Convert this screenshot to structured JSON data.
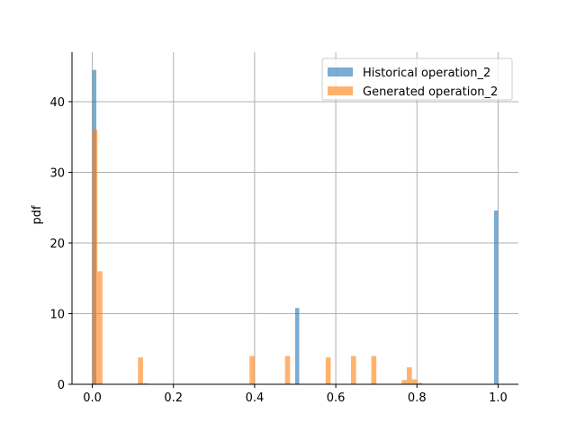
{
  "chart_data": {
    "type": "histogram",
    "title": "",
    "xlabel": "",
    "ylabel": "pdf",
    "xlim": [
      -0.05,
      1.05
    ],
    "ylim": [
      0,
      47
    ],
    "xticks": [
      0.0,
      0.2,
      0.4,
      0.6,
      0.8,
      1.0
    ],
    "xtick_labels": [
      "0.0",
      "0.2",
      "0.4",
      "0.6",
      "0.8",
      "1.0"
    ],
    "yticks": [
      0,
      10,
      20,
      30,
      40
    ],
    "ytick_labels": [
      "0",
      "10",
      "20",
      "30",
      "40"
    ],
    "grid": true,
    "legend_position": "top-right",
    "series": [
      {
        "name": "Historical operation_2",
        "color": "#1f77b4",
        "alpha": 0.6,
        "bins": [
          {
            "x0": 0.0,
            "x1": 0.01,
            "value": 44.5
          },
          {
            "x0": 0.5,
            "x1": 0.51,
            "value": 10.8
          },
          {
            "x0": 0.99,
            "x1": 1.0,
            "value": 24.6
          }
        ]
      },
      {
        "name": "Generated operation_2",
        "color": "#ff7f0e",
        "alpha": 0.6,
        "bins": [
          {
            "x0": 0.0,
            "x1": 0.0125,
            "value": 36.0
          },
          {
            "x0": 0.0125,
            "x1": 0.025,
            "value": 16.0
          },
          {
            "x0": 0.1125,
            "x1": 0.125,
            "value": 3.8
          },
          {
            "x0": 0.125,
            "x1": 0.1375,
            "value": 0.15
          },
          {
            "x0": 0.3875,
            "x1": 0.4,
            "value": 4.0
          },
          {
            "x0": 0.475,
            "x1": 0.4875,
            "value": 4.0
          },
          {
            "x0": 0.575,
            "x1": 0.5875,
            "value": 3.8
          },
          {
            "x0": 0.6375,
            "x1": 0.65,
            "value": 4.0
          },
          {
            "x0": 0.6875,
            "x1": 0.7,
            "value": 4.0
          },
          {
            "x0": 0.7625,
            "x1": 0.775,
            "value": 0.6
          },
          {
            "x0": 0.775,
            "x1": 0.7875,
            "value": 2.4
          },
          {
            "x0": 0.7875,
            "x1": 0.8,
            "value": 0.7
          },
          {
            "x0": 0.8,
            "x1": 0.8125,
            "value": 0.2
          }
        ]
      }
    ]
  }
}
